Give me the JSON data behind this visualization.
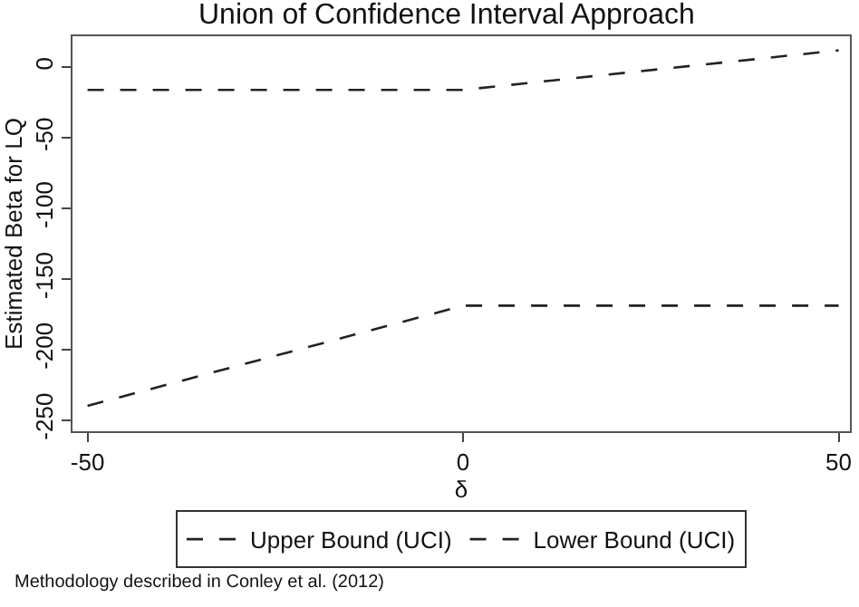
{
  "chart_data": {
    "type": "line",
    "title": "Union of Confidence Interval Approach",
    "xlabel": "δ",
    "ylabel": "Estimated Beta for LQ",
    "x": [
      -50,
      0,
      50
    ],
    "series": [
      {
        "name": "Upper Bound (UCI)",
        "color": "#222222",
        "values": [
          -16,
          -16,
          12
        ],
        "line_style": "dashed"
      },
      {
        "name": "Lower Bound (UCI)",
        "color": "#222222",
        "values": [
          -240,
          -169,
          -169
        ],
        "line_style": "dashed"
      }
    ],
    "xlim": [
      -52,
      51.5
    ],
    "ylim": [
      -258,
      22
    ],
    "xticks": [
      -50,
      0,
      50
    ],
    "yticks": [
      -250,
      -200,
      -150,
      -100,
      -50,
      0
    ],
    "legend": "bottom",
    "marker": "none",
    "annotations": [
      "Methodology described in Conley et al. (2012)"
    ]
  }
}
